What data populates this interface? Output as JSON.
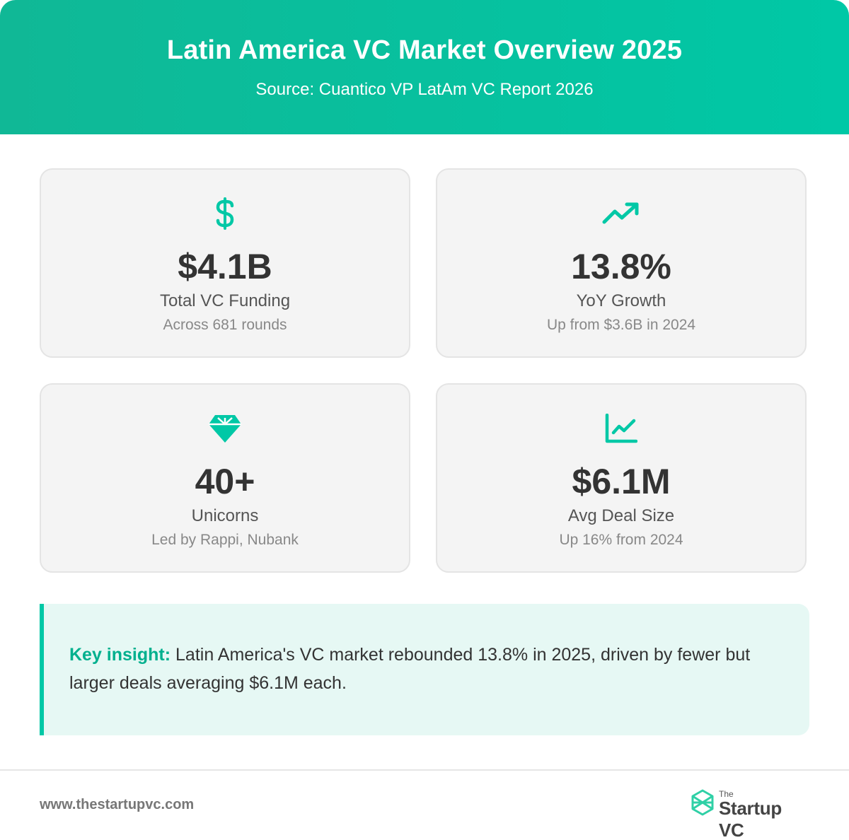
{
  "header": {
    "title": "Latin America VC Market Overview 2025",
    "subtitle": "Source: Cuantico VP LatAm VC Report 2026"
  },
  "colors": {
    "accent": "#00c8a6",
    "header_bg": "#10b896",
    "card_bg": "#f4f4f4",
    "insight_bg": "#e6f8f4",
    "value_text": "#333333"
  },
  "cards": [
    {
      "icon": "dollar-sign-icon",
      "value": "$4.1B",
      "label": "Total VC Funding",
      "detail": "Across 681 rounds"
    },
    {
      "icon": "trending-up-icon",
      "value": "13.8%",
      "label": "YoY Growth",
      "detail": "Up from $3.6B in 2024"
    },
    {
      "icon": "gem-icon",
      "value": "40+",
      "label": "Unicorns",
      "detail": "Led by Rappi, Nubank"
    },
    {
      "icon": "line-chart-icon",
      "value": "$6.1M",
      "label": "Avg Deal Size",
      "detail": "Up 16% from 2024"
    }
  ],
  "insight": {
    "lead": "Key insight:",
    "text": " Latin America's VC market rebounded 13.8% in 2025, driven by fewer but larger deals averaging $6.1M each."
  },
  "footer": {
    "url": "www.thestartupvc.com",
    "logo_small": "The",
    "logo_main": "Startup VC",
    "logo_icon": "startup-vc-logo-icon"
  }
}
